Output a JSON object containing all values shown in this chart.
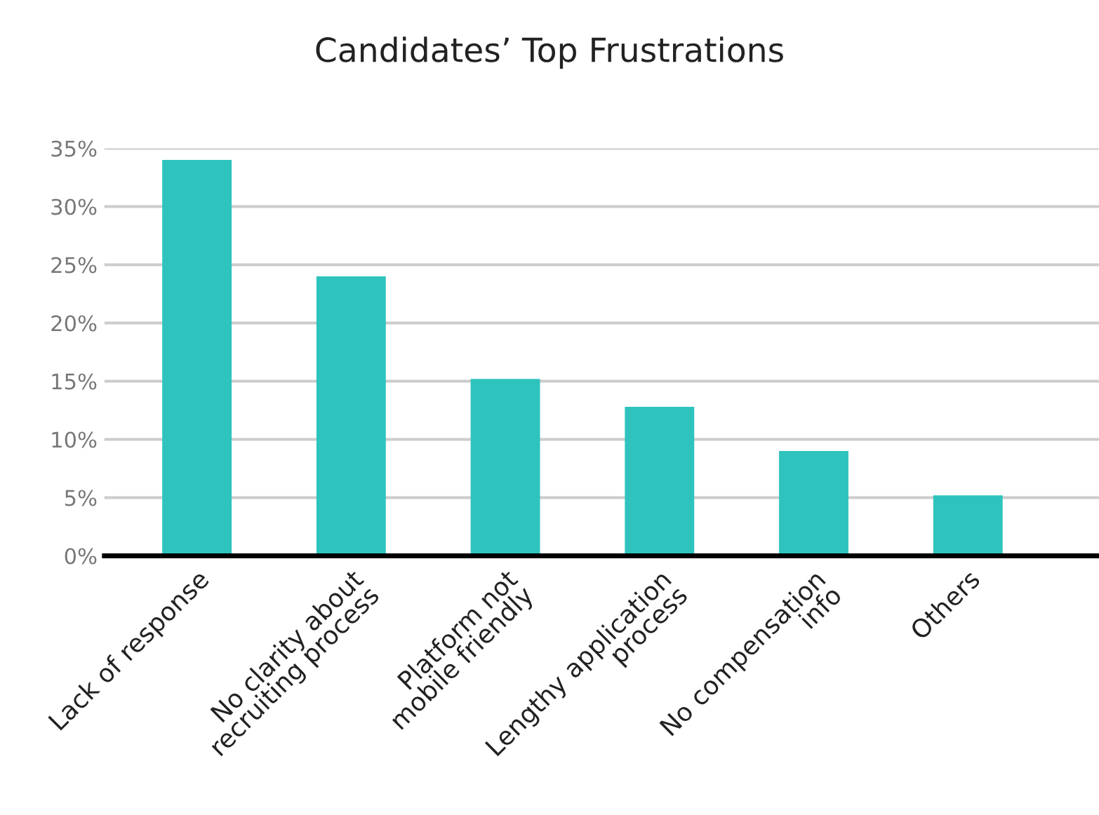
{
  "chart_data": {
    "type": "bar",
    "title": "Candidates’ Top Frustrations",
    "categories": [
      "Lack of response",
      "No clarity about\nrecruiting process",
      "Platform not\nmobile friendly",
      "Lengthy application\nprocess",
      "No compensation\ninfo",
      "Others"
    ],
    "values": [
      34,
      24,
      15.2,
      12.8,
      9,
      5.2
    ],
    "color": "#2ec4bd",
    "ylim": [
      0,
      35
    ],
    "yticks": [
      {
        "value": 0,
        "label": "0%"
      },
      {
        "value": 5,
        "label": "5%"
      },
      {
        "value": 10,
        "label": "10%"
      },
      {
        "value": 15,
        "label": "15%"
      },
      {
        "value": 20,
        "label": "20%"
      },
      {
        "value": 25,
        "label": "25%"
      },
      {
        "value": 30,
        "label": "30%"
      },
      {
        "value": 35,
        "label": "35%"
      }
    ],
    "grid": "y"
  }
}
